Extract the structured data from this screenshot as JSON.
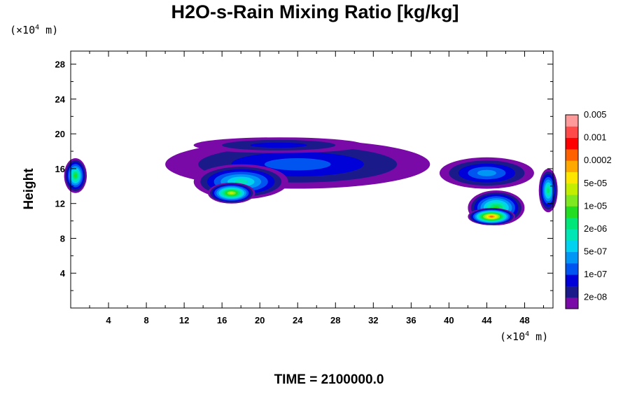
{
  "chart_data": {
    "type": "heatmap",
    "title": "H2O-s-Rain Mixing Ratio [kg/kg]",
    "ylabel": "Height",
    "xlabel": "",
    "x_unit_prefix": "(×10",
    "x_unit_exp": "4",
    "x_unit_suffix": " m)",
    "y_unit_prefix": "(×10",
    "y_unit_exp": "4",
    "y_unit_suffix": " m)",
    "time_label": "TIME = 2100000.0",
    "xlim": [
      0,
      51
    ],
    "ylim": [
      0,
      29.5
    ],
    "x_ticks": [
      "4",
      "8",
      "12",
      "16",
      "20",
      "24",
      "28",
      "32",
      "36",
      "40",
      "44",
      "48"
    ],
    "y_ticks": [
      "4",
      "8",
      "12",
      "16",
      "20",
      "24",
      "28"
    ],
    "colorbar": {
      "colors": [
        "#7a0aa8",
        "#1a1a8a",
        "#0000d8",
        "#0055f0",
        "#0096f5",
        "#00d2f0",
        "#00e6b4",
        "#00e678",
        "#22dd22",
        "#7ee820",
        "#c4ee00",
        "#ffe600",
        "#ffa800",
        "#ff6000",
        "#ff0000",
        "#ff4a4a",
        "#ff9a9a"
      ],
      "labels": [
        "2e-08",
        "1e-07",
        "5e-07",
        "2e-06",
        "1e-05",
        "5e-05",
        "0.0002",
        "0.001",
        "0.005"
      ]
    },
    "features": [
      {
        "desc": "upper anvil layer",
        "x": 24,
        "y": 16.5,
        "sx": 14,
        "sy": 2.8,
        "level": 3
      },
      {
        "desc": "anvil top",
        "x": 22,
        "y": 18.7,
        "sx": 9,
        "sy": 0.9,
        "level": 2
      },
      {
        "desc": "left edge cloud",
        "x": 0.5,
        "y": 15.2,
        "sx": 1.2,
        "sy": 2.0,
        "level": 8
      },
      {
        "desc": "mid layer west",
        "x": 18,
        "y": 14.5,
        "sx": 5,
        "sy": 2.0,
        "level": 6
      },
      {
        "desc": "core west",
        "x": 17,
        "y": 13.2,
        "sx": 2.5,
        "sy": 1.2,
        "level": 10
      },
      {
        "desc": "east anvil",
        "x": 44,
        "y": 15.5,
        "sx": 5,
        "sy": 1.8,
        "level": 4
      },
      {
        "desc": "east convective",
        "x": 45,
        "y": 11.5,
        "sx": 3,
        "sy": 2.0,
        "level": 8
      },
      {
        "desc": "east core",
        "x": 44.5,
        "y": 10.5,
        "sx": 2.5,
        "sy": 1.0,
        "level": 13
      },
      {
        "desc": "right edge cloud",
        "x": 50.5,
        "y": 13.5,
        "sx": 1.0,
        "sy": 2.5,
        "level": 7
      }
    ],
    "grid": false,
    "legend": "right"
  }
}
